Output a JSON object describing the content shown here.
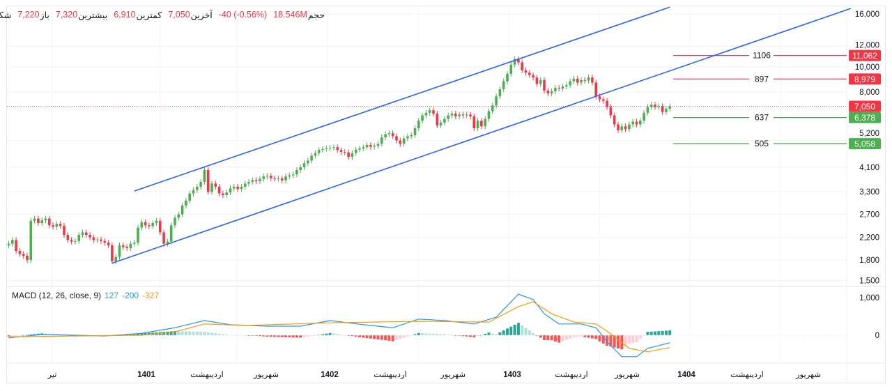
{
  "header": {
    "symbol": "شکرین، بورس",
    "open_label": "باز",
    "open": "7,220",
    "high_label": "بیشترین",
    "high": "7,320",
    "low_label": "کمترین",
    "low": "6,910",
    "last_label": "آخرین",
    "last": "7,050",
    "change": "-40 (-0.56%)",
    "volume_label": "حجم",
    "volume": "18.546M"
  },
  "macd_legend": {
    "title": "MACD (12, 26, close, 9)",
    "histogram": "127",
    "macd": "-200",
    "signal": "-327"
  },
  "colors": {
    "up": "#4caf50",
    "down": "#f23645",
    "channel": "#2962ff",
    "macd": "#2196f3",
    "signal": "#ff9800",
    "hist_up": "#26a69a",
    "hist_up_light": "#b2dfdb",
    "hist_down": "#ff5252",
    "hist_down_light": "#ffcdd2",
    "resistance": "#e04050",
    "support": "#43a047"
  },
  "chart_data": [
    {
      "type": "candlestick",
      "y_scale": "log",
      "ylim": [
        1450,
        17500
      ],
      "y_ticks": [
        "16,000",
        "12,000",
        "10,000",
        "8,000",
        "5,200",
        "4,100",
        "3,300",
        "2,700",
        "2,200",
        "1,800",
        "1,500"
      ],
      "y_tick_values": [
        16000,
        12000,
        10000,
        8000,
        5200,
        4100,
        3300,
        2700,
        2200,
        1800,
        1500
      ],
      "grid": true,
      "first_open": 2050,
      "close": [
        2080,
        2150,
        1950,
        1900,
        1870,
        1800,
        2550,
        2600,
        2500,
        2560,
        2600,
        2450,
        2420,
        2480,
        2440,
        2250,
        2150,
        2120,
        2130,
        2250,
        2300,
        2250,
        2200,
        2150,
        2160,
        2130,
        2100,
        2050,
        1780,
        1850,
        2050,
        2020,
        2000,
        2080,
        2100,
        2400,
        2520,
        2450,
        2430,
        2500,
        2550,
        2300,
        2080,
        2120,
        2450,
        2620,
        2700,
        2920,
        3050,
        3250,
        3350,
        3450,
        3600,
        4000,
        3300,
        3550,
        3450,
        3250,
        3200,
        3280,
        3400,
        3450,
        3380,
        3450,
        3550,
        3600,
        3660,
        3620,
        3700,
        3780,
        3800,
        3720,
        3700,
        3720,
        3650,
        3780,
        3820,
        3850,
        4000,
        4100,
        4250,
        4350,
        4550,
        4650,
        4780,
        4820,
        4850,
        4880,
        4900,
        4780,
        4700,
        4680,
        4500,
        4650,
        4800,
        4850,
        4900,
        5000,
        4920,
        4960,
        5050,
        5350,
        5500,
        5550,
        5400,
        5200,
        5050,
        5300,
        5400,
        5450,
        5800,
        6200,
        6500,
        6650,
        6800,
        6600,
        5950,
        6100,
        6300,
        6500,
        6600,
        6450,
        6550,
        6500,
        6550,
        6450,
        5800,
        6200,
        5900,
        6300,
        6750,
        7100,
        7700,
        8200,
        8800,
        9400,
        10200,
        10700,
        10400,
        9700,
        9500,
        9300,
        9100,
        8600,
        8900,
        8100,
        7900,
        8050,
        8300,
        8250,
        8400,
        8500,
        8800,
        9000,
        8700,
        8900,
        8850,
        9100,
        8700,
        7700,
        7500,
        7400,
        7000,
        6500,
        6000,
        5700,
        5900,
        5750,
        6000,
        6150,
        6000,
        6200,
        6650,
        7000,
        7150,
        7000,
        7050,
        6700,
        6900,
        7050
      ],
      "last_price": {
        "value": 7050,
        "label": "7,050"
      },
      "channel_lines": [
        {
          "from": {
            "bar": 34,
            "price": 3320
          },
          "to": {
            "bar": 179,
            "price": 17000
          }
        },
        {
          "from": {
            "bar": 28,
            "price": 1750
          },
          "to": {
            "bar": 228,
            "price": 16800
          }
        }
      ],
      "levels": [
        {
          "price": 11062,
          "label": "11,062",
          "tag": "1106",
          "kind": "resistance"
        },
        {
          "price": 8979,
          "label": "8,979",
          "tag": "897",
          "kind": "resistance"
        },
        {
          "price": 6378,
          "label": "6,378",
          "tag": "637",
          "kind": "support"
        },
        {
          "price": 5058,
          "label": "5,058",
          "tag": "505",
          "kind": "support"
        }
      ],
      "x_labels": [
        {
          "text": "تیر",
          "year": false
        },
        {
          "text": "1401",
          "year": true
        },
        {
          "text": "اردیبهشت",
          "year": false
        },
        {
          "text": "شهریور",
          "year": false
        },
        {
          "text": "1402",
          "year": true
        },
        {
          "text": "اردیبهشت",
          "year": false
        },
        {
          "text": "شهریور",
          "year": false
        },
        {
          "text": "1403",
          "year": true
        },
        {
          "text": "اردیبهشت",
          "year": false
        },
        {
          "text": "شهریور",
          "year": false
        },
        {
          "text": "1404",
          "year": true
        },
        {
          "text": "اردیبهشت",
          "year": false
        },
        {
          "text": "شهریور",
          "year": false
        }
      ]
    },
    {
      "type": "line",
      "title": "MACD (12, 26, close, 9)",
      "ylim": [
        -700,
        1100
      ],
      "y_ticks": [
        "1,000",
        "0"
      ],
      "y_tick_values": [
        1000,
        0
      ],
      "macd_points": [
        [
          0,
          -70
        ],
        [
          9,
          20
        ],
        [
          26,
          -20
        ],
        [
          36,
          50
        ],
        [
          45,
          200
        ],
        [
          53,
          390
        ],
        [
          60,
          280
        ],
        [
          70,
          240
        ],
        [
          79,
          240
        ],
        [
          87,
          390
        ],
        [
          96,
          280
        ],
        [
          104,
          200
        ],
        [
          111,
          430
        ],
        [
          118,
          390
        ],
        [
          126,
          300
        ],
        [
          132,
          480
        ],
        [
          138,
          1090
        ],
        [
          142,
          950
        ],
        [
          145,
          570
        ],
        [
          149,
          300
        ],
        [
          155,
          300
        ],
        [
          159,
          200
        ],
        [
          162,
          -170
        ],
        [
          166,
          -570
        ],
        [
          170,
          -570
        ],
        [
          173,
          -350
        ],
        [
          179,
          -200
        ]
      ],
      "signal_points": [
        [
          0,
          -40
        ],
        [
          36,
          0
        ],
        [
          45,
          90
        ],
        [
          53,
          300
        ],
        [
          64,
          260
        ],
        [
          87,
          330
        ],
        [
          111,
          370
        ],
        [
          130,
          350
        ],
        [
          138,
          760
        ],
        [
          142,
          890
        ],
        [
          147,
          570
        ],
        [
          153,
          350
        ],
        [
          159,
          300
        ],
        [
          162,
          110
        ],
        [
          168,
          -350
        ],
        [
          173,
          -440
        ],
        [
          179,
          -327
        ]
      ]
    }
  ]
}
